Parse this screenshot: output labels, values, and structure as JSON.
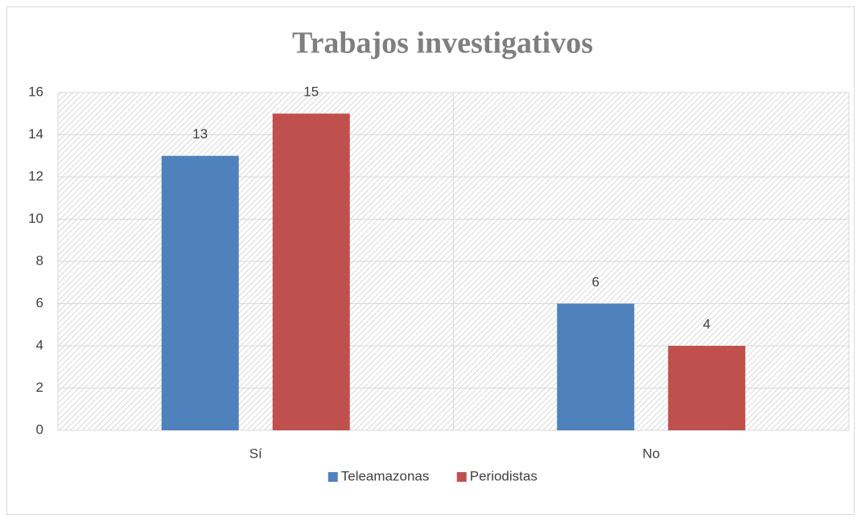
{
  "chart_data": {
    "type": "bar",
    "title": "Trabajos investigativos",
    "categories": [
      "Sí",
      "No"
    ],
    "series": [
      {
        "name": "Teleamazonas",
        "color": "#4f81bd",
        "values": [
          13,
          6
        ]
      },
      {
        "name": "Periodistas",
        "color": "#c0504d",
        "values": [
          15,
          4
        ]
      }
    ],
    "ylim": [
      0,
      16
    ],
    "yticks": [
      0,
      2,
      4,
      6,
      8,
      10,
      12,
      14,
      16
    ],
    "grid": true,
    "legend": "bottom"
  }
}
